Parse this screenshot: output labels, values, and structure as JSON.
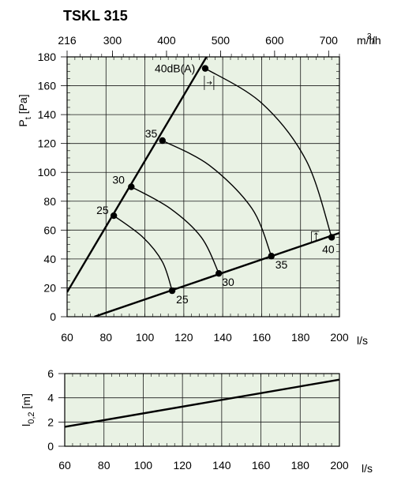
{
  "title": "TSKL 315",
  "chart_data": [
    {
      "type": "line",
      "title": "TSKL 315",
      "xlabel": "l/s",
      "ylabel": "Pt [Pa]",
      "xlim": [
        60,
        200
      ],
      "ylim": [
        0,
        180
      ],
      "x_ticks": [
        60,
        80,
        100,
        120,
        140,
        160,
        180,
        200
      ],
      "y_ticks": [
        0,
        20,
        40,
        60,
        80,
        100,
        120,
        140,
        160,
        180
      ],
      "top_axis": {
        "unit": "m3/h",
        "ticks": [
          {
            "label": "216",
            "at_ls": 60
          },
          {
            "label": "300",
            "at_ls": 83.33
          },
          {
            "label": "400",
            "at_ls": 111.11
          },
          {
            "label": "500",
            "at_ls": 138.89
          },
          {
            "label": "600",
            "at_ls": 166.67
          },
          {
            "label": "700",
            "at_ls": 194.44
          }
        ]
      },
      "grid": true,
      "series": [
        {
          "kind": "line",
          "x": [
            60,
            133
          ],
          "y": [
            17,
            183
          ]
        },
        {
          "kind": "line",
          "x": [
            74,
            200
          ],
          "y": [
            0,
            58
          ]
        },
        {
          "kind": "arc",
          "x": [
            84,
            99,
            109,
            114
          ],
          "y": [
            70,
            55,
            38,
            18
          ]
        },
        {
          "kind": "arc",
          "x": [
            93,
            113,
            129,
            138
          ],
          "y": [
            90,
            75,
            55,
            30
          ]
        },
        {
          "kind": "arc",
          "x": [
            109,
            133,
            155,
            165
          ],
          "y": [
            122,
            105,
            75,
            42
          ]
        },
        {
          "kind": "arc",
          "x": [
            131,
            160,
            183,
            196
          ],
          "y": [
            172,
            148,
            108,
            55
          ]
        }
      ],
      "points": [
        {
          "label": "25",
          "x": 84,
          "y": 70
        },
        {
          "label": "30",
          "x": 93,
          "y": 90
        },
        {
          "label": "35",
          "x": 109,
          "y": 122
        },
        {
          "label": "40dB(A)",
          "x": 131,
          "y": 172
        },
        {
          "label": "25",
          "x": 114,
          "y": 18
        },
        {
          "label": "30",
          "x": 138,
          "y": 30
        },
        {
          "label": "35",
          "x": 165,
          "y": 42
        },
        {
          "label": "40",
          "x": 196,
          "y": 55
        }
      ]
    },
    {
      "type": "line",
      "xlabel": "l/s",
      "ylabel": "l0,2 [m]",
      "xlim": [
        60,
        200
      ],
      "ylim": [
        0,
        6
      ],
      "x_ticks": [
        60,
        80,
        100,
        120,
        140,
        160,
        180,
        200
      ],
      "y_ticks": [
        0,
        2,
        4,
        6
      ],
      "grid": true,
      "series": [
        {
          "x": [
            60,
            200
          ],
          "y": [
            1.6,
            5.5
          ]
        }
      ]
    }
  ],
  "colors": {
    "plot_bg": "#e9f2e4",
    "grid": "#1a1a1a",
    "line": "#000000"
  }
}
